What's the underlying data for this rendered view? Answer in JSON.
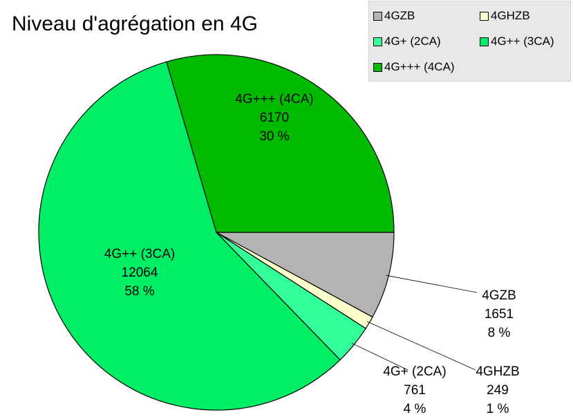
{
  "chart_data": {
    "type": "pie",
    "title": "Niveau d'agrégation en 4G",
    "legend_position": "top-right",
    "slices": [
      {
        "name": "4GZB",
        "value": 1651,
        "percent": "8 %",
        "color": "#b3b3b3"
      },
      {
        "name": "4GHZB",
        "value": 249,
        "percent": "1 %",
        "color": "#ffffcc"
      },
      {
        "name": "4G+ (2CA)",
        "value": 761,
        "percent": "4 %",
        "color": "#33ff99"
      },
      {
        "name": "4G++ (3CA)",
        "value": 12064,
        "percent": "58 %",
        "color": "#00ee66"
      },
      {
        "name": "4G+++ (4CA)",
        "value": 6170,
        "percent": "30 %",
        "color": "#00bb00"
      }
    ]
  }
}
